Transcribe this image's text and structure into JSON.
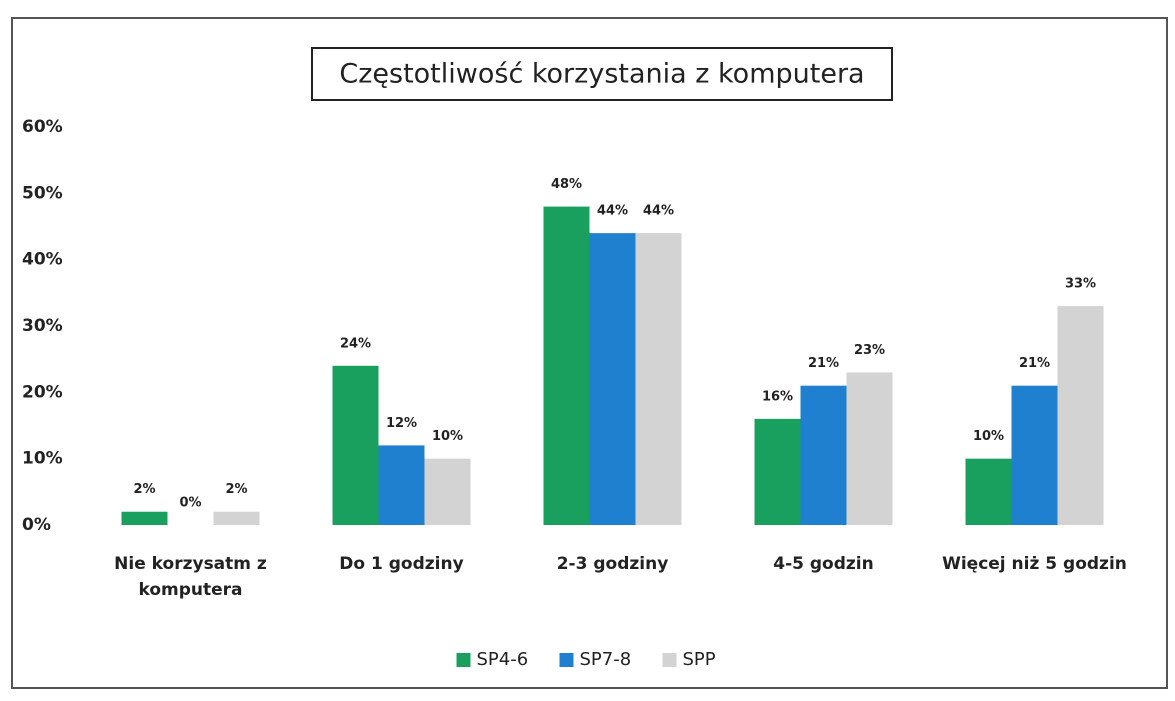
{
  "chart_data": {
    "type": "bar",
    "title": "Częstotliwość korzystania z komputera",
    "categories": [
      "Nie korzysatm z komputera",
      "Do 1 godziny",
      "2-3 godziny",
      "4-5 godzin",
      "Więcej niż 5 godzin"
    ],
    "series": [
      {
        "name": "SP4-6",
        "color": "#19a05e",
        "values": [
          2,
          24,
          48,
          16,
          10
        ],
        "value_labels": [
          "2%",
          "24%",
          "48%",
          "16%",
          "10%"
        ]
      },
      {
        "name": "SP7-8",
        "color": "#1f80d0",
        "values": [
          0,
          12,
          44,
          21,
          21
        ],
        "value_labels": [
          "0%",
          "12%",
          "44%",
          "21%",
          "21%"
        ]
      },
      {
        "name": "SPP",
        "color": "#d3d3d3",
        "values": [
          2,
          10,
          44,
          23,
          33
        ],
        "value_labels": [
          "2%",
          "10%",
          "44%",
          "23%",
          "33%"
        ]
      }
    ],
    "ylim": [
      0,
      60
    ],
    "yticks": [
      {
        "value": 0,
        "label": "0%"
      },
      {
        "value": 10,
        "label": "10%"
      },
      {
        "value": 20,
        "label": "20%"
      },
      {
        "value": 30,
        "label": "30%"
      },
      {
        "value": 40,
        "label": "40%"
      },
      {
        "value": 50,
        "label": "50%"
      },
      {
        "value": 60,
        "label": "60%"
      }
    ],
    "legend": "bottom"
  }
}
